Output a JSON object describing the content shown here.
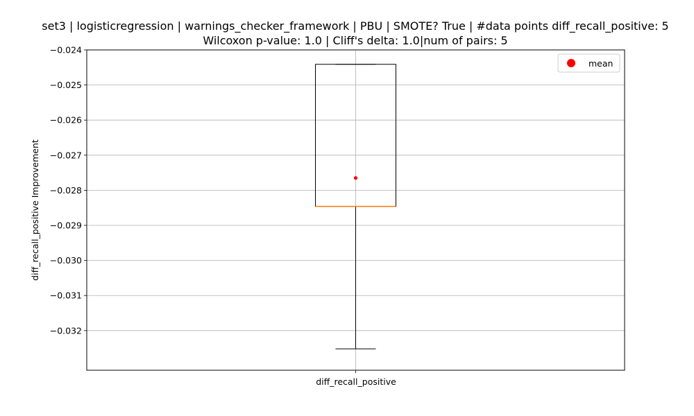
{
  "chart_data": {
    "type": "box",
    "title_line1": "set3 | logisticregression | warnings_checker_framework | PBU | SMOTE? True | #data points diff_recall_positive: 5",
    "title_line2": "Wilcoxon p-value: 1.0 | Cliff's delta: 1.0|num of pairs: 5",
    "xlabel": "",
    "ylabel": "diff_recall_positive Improvement",
    "categories": [
      "diff_recall_positive"
    ],
    "ylim": [
      -0.03313,
      -0.024
    ],
    "yticks": [
      -0.024,
      -0.025,
      -0.026,
      -0.027,
      -0.028,
      -0.029,
      -0.03,
      -0.031,
      -0.032
    ],
    "ytick_labels": [
      "−0.024",
      "−0.025",
      "−0.026",
      "−0.027",
      "−0.028",
      "−0.029",
      "−0.030",
      "−0.031",
      "−0.032"
    ],
    "box": {
      "whisker_low": -0.03252,
      "q1": -0.02846,
      "median": -0.02846,
      "q3": -0.02441,
      "whisker_high": -0.02441,
      "mean": -0.02765
    },
    "legend": {
      "entries": [
        "mean"
      ],
      "placement": "top-right"
    },
    "grid": true,
    "colors": {
      "box": "#000000",
      "median": "#ff7f0e",
      "mean": "#ff0000",
      "grid": "#b0b0b0"
    }
  }
}
